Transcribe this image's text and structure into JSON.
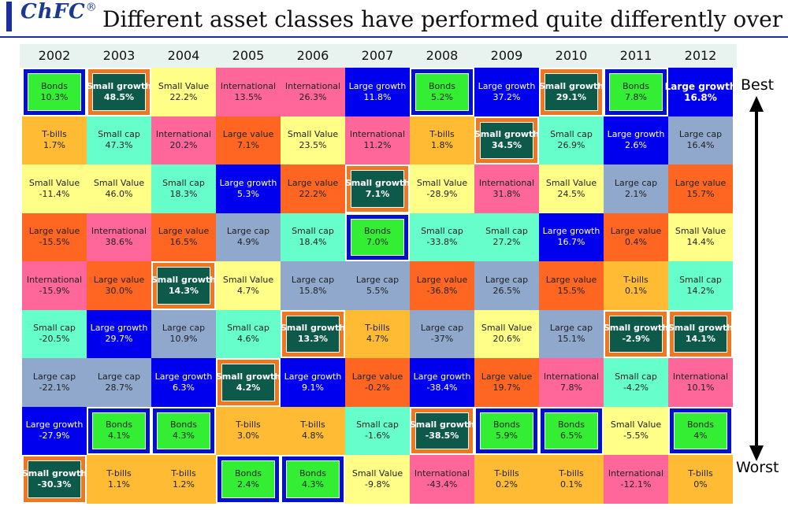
{
  "header": {
    "logo": "ChFC",
    "logo_mark": "®",
    "title": "Different asset classes have performed quite differently over"
  },
  "axis": {
    "best_label": "Best",
    "worst_label": "Worst"
  },
  "colors": {
    "Bonds": "#33ee33",
    "Small growth": "#0e5a4a",
    "Small Value": "#ffff88",
    "International": "#ff6699",
    "Large growth": "#0000ee",
    "T-bills": "#ffbb33",
    "Small cap": "#66ffcc",
    "Large value": "#ff6622",
    "Large cap": "#8fa8cc",
    "highlight_border_orange": "#ee7722",
    "highlight_border_blue": "#0011cc"
  },
  "chart_data": {
    "type": "table",
    "title": "Different asset classes have performed quite differently over",
    "ranking": "Best (top) to Worst (bottom)",
    "years": [
      "2002",
      "2003",
      "2004",
      "2005",
      "2006",
      "2007",
      "2008",
      "2009",
      "2010",
      "2011",
      "2012"
    ],
    "columns": [
      [
        {
          "asset": "Bonds",
          "value": "10.3%"
        },
        {
          "asset": "T-bills",
          "value": "1.7%"
        },
        {
          "asset": "Small Value",
          "value": "-11.4%"
        },
        {
          "asset": "Large value",
          "value": "-15.5%"
        },
        {
          "asset": "International",
          "value": "-15.9%"
        },
        {
          "asset": "Small cap",
          "value": "-20.5%"
        },
        {
          "asset": "Large cap",
          "value": "-22.1%"
        },
        {
          "asset": "Large growth",
          "value": "-27.9%"
        },
        {
          "asset": "Small growth",
          "value": "-30.3%"
        }
      ],
      [
        {
          "asset": "Small growth",
          "value": "48.5%"
        },
        {
          "asset": "Small cap",
          "value": "47.3%"
        },
        {
          "asset": "Small Value",
          "value": "46.0%"
        },
        {
          "asset": "International",
          "value": "38.6%"
        },
        {
          "asset": "Large value",
          "value": "30.0%"
        },
        {
          "asset": "Large growth",
          "value": "29.7%"
        },
        {
          "asset": "Large cap",
          "value": "28.7%"
        },
        {
          "asset": "Bonds",
          "value": "4.1%"
        },
        {
          "asset": "T-bills",
          "value": "1.1%"
        }
      ],
      [
        {
          "asset": "Small Value",
          "value": "22.2%"
        },
        {
          "asset": "International",
          "value": "20.2%"
        },
        {
          "asset": "Small cap",
          "value": "18.3%"
        },
        {
          "asset": "Large value",
          "value": "16.5%"
        },
        {
          "asset": "Small growth",
          "value": "14.3%"
        },
        {
          "asset": "Large cap",
          "value": "10.9%"
        },
        {
          "asset": "Large growth",
          "value": "6.3%"
        },
        {
          "asset": "Bonds",
          "value": "4.3%"
        },
        {
          "asset": "T-bills",
          "value": "1.2%"
        }
      ],
      [
        {
          "asset": "International",
          "value": "13.5%"
        },
        {
          "asset": "Large value",
          "value": "7.1%"
        },
        {
          "asset": "Large growth",
          "value": "5.3%"
        },
        {
          "asset": "Large cap",
          "value": "4.9%"
        },
        {
          "asset": "Small Value",
          "value": "4.7%"
        },
        {
          "asset": "Small cap",
          "value": "4.6%"
        },
        {
          "asset": "Small growth",
          "value": "4.2%"
        },
        {
          "asset": "T-bills",
          "value": "3.0%"
        },
        {
          "asset": "Bonds",
          "value": "2.4%"
        }
      ],
      [
        {
          "asset": "International",
          "value": "26.3%"
        },
        {
          "asset": "Small Value",
          "value": "23.5%"
        },
        {
          "asset": "Large value",
          "value": "22.2%"
        },
        {
          "asset": "Small cap",
          "value": "18.4%"
        },
        {
          "asset": "Large cap",
          "value": "15.8%"
        },
        {
          "asset": "Small growth",
          "value": "13.3%"
        },
        {
          "asset": "Large growth",
          "value": "9.1%"
        },
        {
          "asset": "T-bills",
          "value": "4.8%"
        },
        {
          "asset": "Bonds",
          "value": "4.3%"
        }
      ],
      [
        {
          "asset": "Large growth",
          "value": "11.8%"
        },
        {
          "asset": "International",
          "value": "11.2%"
        },
        {
          "asset": "Small growth",
          "value": "7.1%"
        },
        {
          "asset": "Bonds",
          "value": "7.0%"
        },
        {
          "asset": "Large cap",
          "value": "5.5%"
        },
        {
          "asset": "T-bills",
          "value": "4.7%"
        },
        {
          "asset": "Large value",
          "value": "-0.2%"
        },
        {
          "asset": "Small cap",
          "value": "-1.6%"
        },
        {
          "asset": "Small Value",
          "value": "-9.8%"
        }
      ],
      [
        {
          "asset": "Bonds",
          "value": "5.2%"
        },
        {
          "asset": "T-bills",
          "value": "1.8%"
        },
        {
          "asset": "Small Value",
          "value": "-28.9%"
        },
        {
          "asset": "Small cap",
          "value": "-33.8%"
        },
        {
          "asset": "Large value",
          "value": "-36.8%"
        },
        {
          "asset": "Large cap",
          "value": "-37%"
        },
        {
          "asset": "Large growth",
          "value": "-38.4%"
        },
        {
          "asset": "Small growth",
          "value": "-38.5%"
        },
        {
          "asset": "International",
          "value": "-43.4%"
        }
      ],
      [
        {
          "asset": "Large growth",
          "value": "37.2%"
        },
        {
          "asset": "Small growth",
          "value": "34.5%"
        },
        {
          "asset": "International",
          "value": "31.8%"
        },
        {
          "asset": "Small cap",
          "value": "27.2%"
        },
        {
          "asset": "Large cap",
          "value": "26.5%"
        },
        {
          "asset": "Small Value",
          "value": "20.6%"
        },
        {
          "asset": "Large value",
          "value": "19.7%"
        },
        {
          "asset": "Bonds",
          "value": "5.9%"
        },
        {
          "asset": "T-bills",
          "value": "0.2%"
        }
      ],
      [
        {
          "asset": "Small growth",
          "value": "29.1%"
        },
        {
          "asset": "Small cap",
          "value": "26.9%"
        },
        {
          "asset": "Small Value",
          "value": "24.5%"
        },
        {
          "asset": "Large growth",
          "value": "16.7%"
        },
        {
          "asset": "Large value",
          "value": "15.5%"
        },
        {
          "asset": "Large cap",
          "value": "15.1%"
        },
        {
          "asset": "International",
          "value": "7.8%"
        },
        {
          "asset": "Bonds",
          "value": "6.5%"
        },
        {
          "asset": "T-bills",
          "value": "0.1%"
        }
      ],
      [
        {
          "asset": "Bonds",
          "value": "7.8%"
        },
        {
          "asset": "Large growth",
          "value": "2.6%"
        },
        {
          "asset": "Large cap",
          "value": "2.1%"
        },
        {
          "asset": "Large value",
          "value": "0.4%"
        },
        {
          "asset": "T-bills",
          "value": "0.1%"
        },
        {
          "asset": "Small growth",
          "value": "-2.9%"
        },
        {
          "asset": "Small cap",
          "value": "-4.2%"
        },
        {
          "asset": "Small Value",
          "value": "-5.5%"
        },
        {
          "asset": "International",
          "value": "-12.1%"
        }
      ],
      [
        {
          "asset": "Large growth",
          "value": "16.8%"
        },
        {
          "asset": "Large cap",
          "value": "16.4%"
        },
        {
          "asset": "Large value",
          "value": "15.7%"
        },
        {
          "asset": "Small Value",
          "value": "14.4%"
        },
        {
          "asset": "Small cap",
          "value": "14.2%"
        },
        {
          "asset": "Small growth",
          "value": "14.1%"
        },
        {
          "asset": "International",
          "value": "10.1%"
        },
        {
          "asset": "Bonds",
          "value": "4%"
        },
        {
          "asset": "T-bills",
          "value": "0%"
        }
      ]
    ]
  }
}
